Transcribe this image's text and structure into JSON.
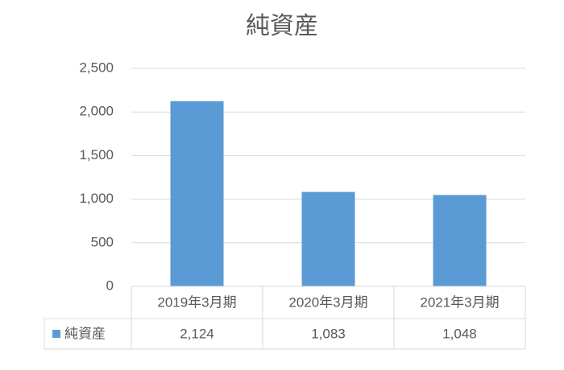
{
  "chart_data": {
    "type": "bar",
    "title": "純資産",
    "categories": [
      "2019年3月期",
      "2020年3月期",
      "2021年3月期"
    ],
    "series": [
      {
        "name": "純資産",
        "color": "#5b9bd5",
        "values": [
          2124,
          1083,
          1048
        ],
        "value_labels": [
          "2,124",
          "1,083",
          "1,048"
        ]
      }
    ],
    "ylim": [
      0,
      2500
    ],
    "yticks": [
      0,
      500,
      {
        "value": 1000,
        "label": "1,000"
      },
      {
        "value": 1500,
        "label": "1,500"
      },
      {
        "value": 2000,
        "label": "2,000"
      },
      {
        "value": 2500,
        "label": "2,500"
      }
    ],
    "grid": true,
    "data_table": true
  }
}
